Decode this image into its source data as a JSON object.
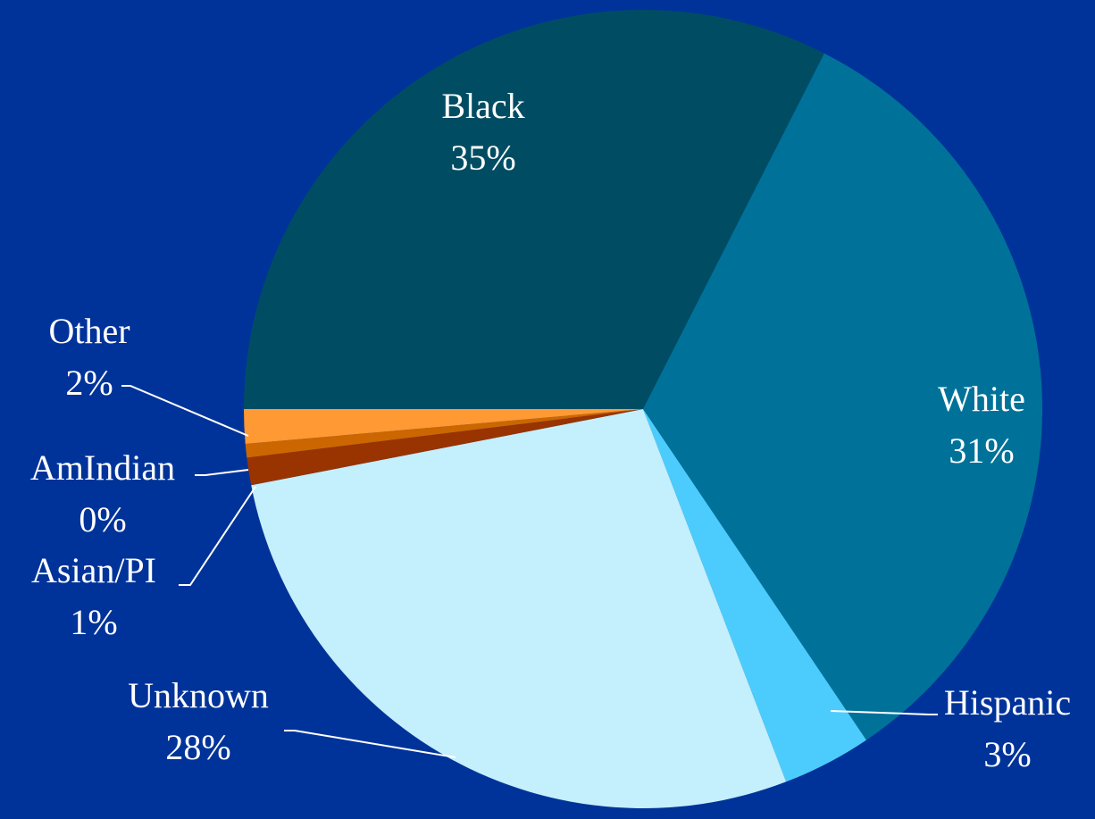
{
  "chart_data": {
    "type": "pie",
    "title": "",
    "start_angle_deg": -180,
    "direction": "clockwise",
    "slices": [
      {
        "label": "Black",
        "value": 35,
        "display": "35%",
        "color": "#004d63",
        "label_color": "#ffffff"
      },
      {
        "label": "White",
        "value": 31,
        "display": "31%",
        "color": "#00729a",
        "label_color": "#ffffff"
      },
      {
        "label": "Hispanic",
        "value": 3,
        "display": "3%",
        "color": "#4cccfc",
        "label_color": "#ffffff"
      },
      {
        "label": "Unknown",
        "value": 28,
        "display": "28%",
        "color": "#c4effc",
        "label_color": "#ffffff"
      },
      {
        "label": "Asian/PI",
        "value": 1,
        "display": "1%",
        "color": "#993300",
        "label_color": "#ffffff"
      },
      {
        "label": "AmIndian",
        "value": 0,
        "display": "0%",
        "color": "#cc6600",
        "label_color": "#ffffff"
      },
      {
        "label": "Other",
        "value": 2,
        "display": "2%",
        "color": "#ff9933",
        "label_color": "#ffffff"
      }
    ]
  }
}
